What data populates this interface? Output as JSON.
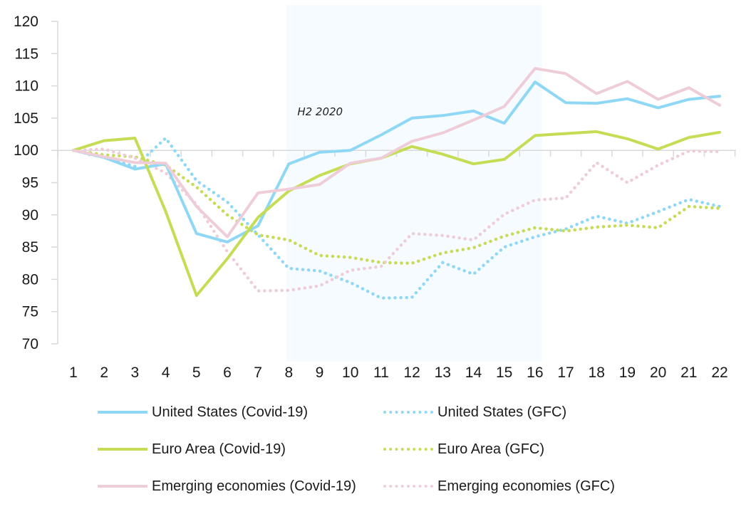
{
  "chart_data": {
    "type": "line",
    "title": "",
    "xlabel": "",
    "ylabel": "",
    "x": [
      1,
      2,
      3,
      4,
      5,
      6,
      7,
      8,
      9,
      10,
      11,
      12,
      13,
      14,
      15,
      16,
      17,
      18,
      19,
      20,
      21,
      22
    ],
    "x_tick_labels": [
      "1",
      "2",
      "3",
      "4",
      "5",
      "6",
      "7",
      "8",
      "9",
      "10",
      "11",
      "12",
      "13",
      "14",
      "15",
      "16",
      "17",
      "18",
      "19",
      "20",
      "21",
      "22"
    ],
    "ylim": [
      70,
      120
    ],
    "y_ticks": [
      70,
      75,
      80,
      85,
      90,
      95,
      100,
      105,
      110,
      115,
      120
    ],
    "y_tick_labels": [
      "70",
      "75",
      "80",
      "85",
      "90",
      "95",
      "100",
      "105",
      "110",
      "115",
      "120"
    ],
    "baseline": 100,
    "grid": false,
    "shaded_region": {
      "x_from": 8,
      "x_to": 16,
      "label": "H2 2020",
      "color": "#f6fbff"
    },
    "legend_position": "bottom",
    "series": [
      {
        "name": "United States (Covid-19)",
        "style": "solid",
        "color": "#8fd8f5",
        "values": [
          100,
          98.9,
          97.1,
          97.9,
          87.1,
          85.8,
          88.3,
          97.9,
          99.7,
          100.0,
          102.4,
          105.0,
          105.4,
          106.1,
          104.2,
          110.6,
          107.4,
          107.3,
          108.0,
          106.6,
          107.9,
          108.4
        ]
      },
      {
        "name": "United States (GFC)",
        "style": "dotted",
        "color": "#8fd8f5",
        "values": [
          100,
          98.9,
          97.5,
          101.9,
          95.3,
          92.0,
          86.9,
          81.7,
          81.3,
          79.5,
          77.1,
          77.2,
          82.6,
          80.8,
          85.0,
          86.6,
          87.8,
          89.8,
          88.7,
          90.5,
          92.4,
          91.3
        ]
      },
      {
        "name": "Euro Area (Covid-19)",
        "style": "solid",
        "color": "#c5dc55",
        "values": [
          100,
          101.5,
          101.9,
          90.5,
          77.5,
          83.2,
          89.6,
          93.7,
          96.1,
          97.9,
          98.8,
          100.6,
          99.4,
          97.9,
          98.6,
          102.3,
          102.6,
          102.9,
          101.8,
          100.2,
          102.0,
          102.8
        ]
      },
      {
        "name": "Euro Area (GFC)",
        "style": "dotted",
        "color": "#c5dc55",
        "values": [
          100,
          99.3,
          99.0,
          97.7,
          94.3,
          90.0,
          86.9,
          86.1,
          83.7,
          83.4,
          82.6,
          82.5,
          84.1,
          84.9,
          86.7,
          88.0,
          87.5,
          88.1,
          88.4,
          88.0,
          91.3,
          91.0
        ]
      },
      {
        "name": "Emerging economies (Covid-19)",
        "style": "solid",
        "color": "#efcdd8",
        "values": [
          100,
          99.0,
          98.1,
          98.0,
          91.3,
          86.6,
          93.4,
          94.0,
          94.7,
          98.0,
          98.8,
          101.4,
          102.7,
          104.7,
          106.8,
          112.7,
          111.9,
          108.8,
          110.7,
          107.9,
          109.7,
          107.0
        ]
      },
      {
        "name": "Emerging economies (GFC)",
        "style": "dotted",
        "color": "#efcdd8",
        "values": [
          100,
          100.2,
          98.8,
          96.5,
          91.6,
          84.3,
          78.2,
          78.3,
          79.0,
          81.4,
          82.0,
          87.1,
          86.8,
          86.1,
          90.1,
          92.3,
          92.6,
          98.1,
          95.0,
          97.7,
          99.9,
          99.8
        ]
      }
    ]
  },
  "legend": {
    "items": [
      {
        "label": "United States (Covid-19)",
        "style": "solid",
        "color": "#8fd8f5"
      },
      {
        "label": "United States (GFC)",
        "style": "dotted",
        "color": "#8fd8f5"
      },
      {
        "label": "Euro Area (Covid-19)",
        "style": "solid",
        "color": "#c5dc55"
      },
      {
        "label": "Euro Area (GFC)",
        "style": "dotted",
        "color": "#c5dc55"
      },
      {
        "label": "Emerging economies (Covid-19)",
        "style": "solid",
        "color": "#efcdd8"
      },
      {
        "label": "Emerging economies (GFC)",
        "style": "dotted",
        "color": "#efcdd8"
      }
    ]
  }
}
